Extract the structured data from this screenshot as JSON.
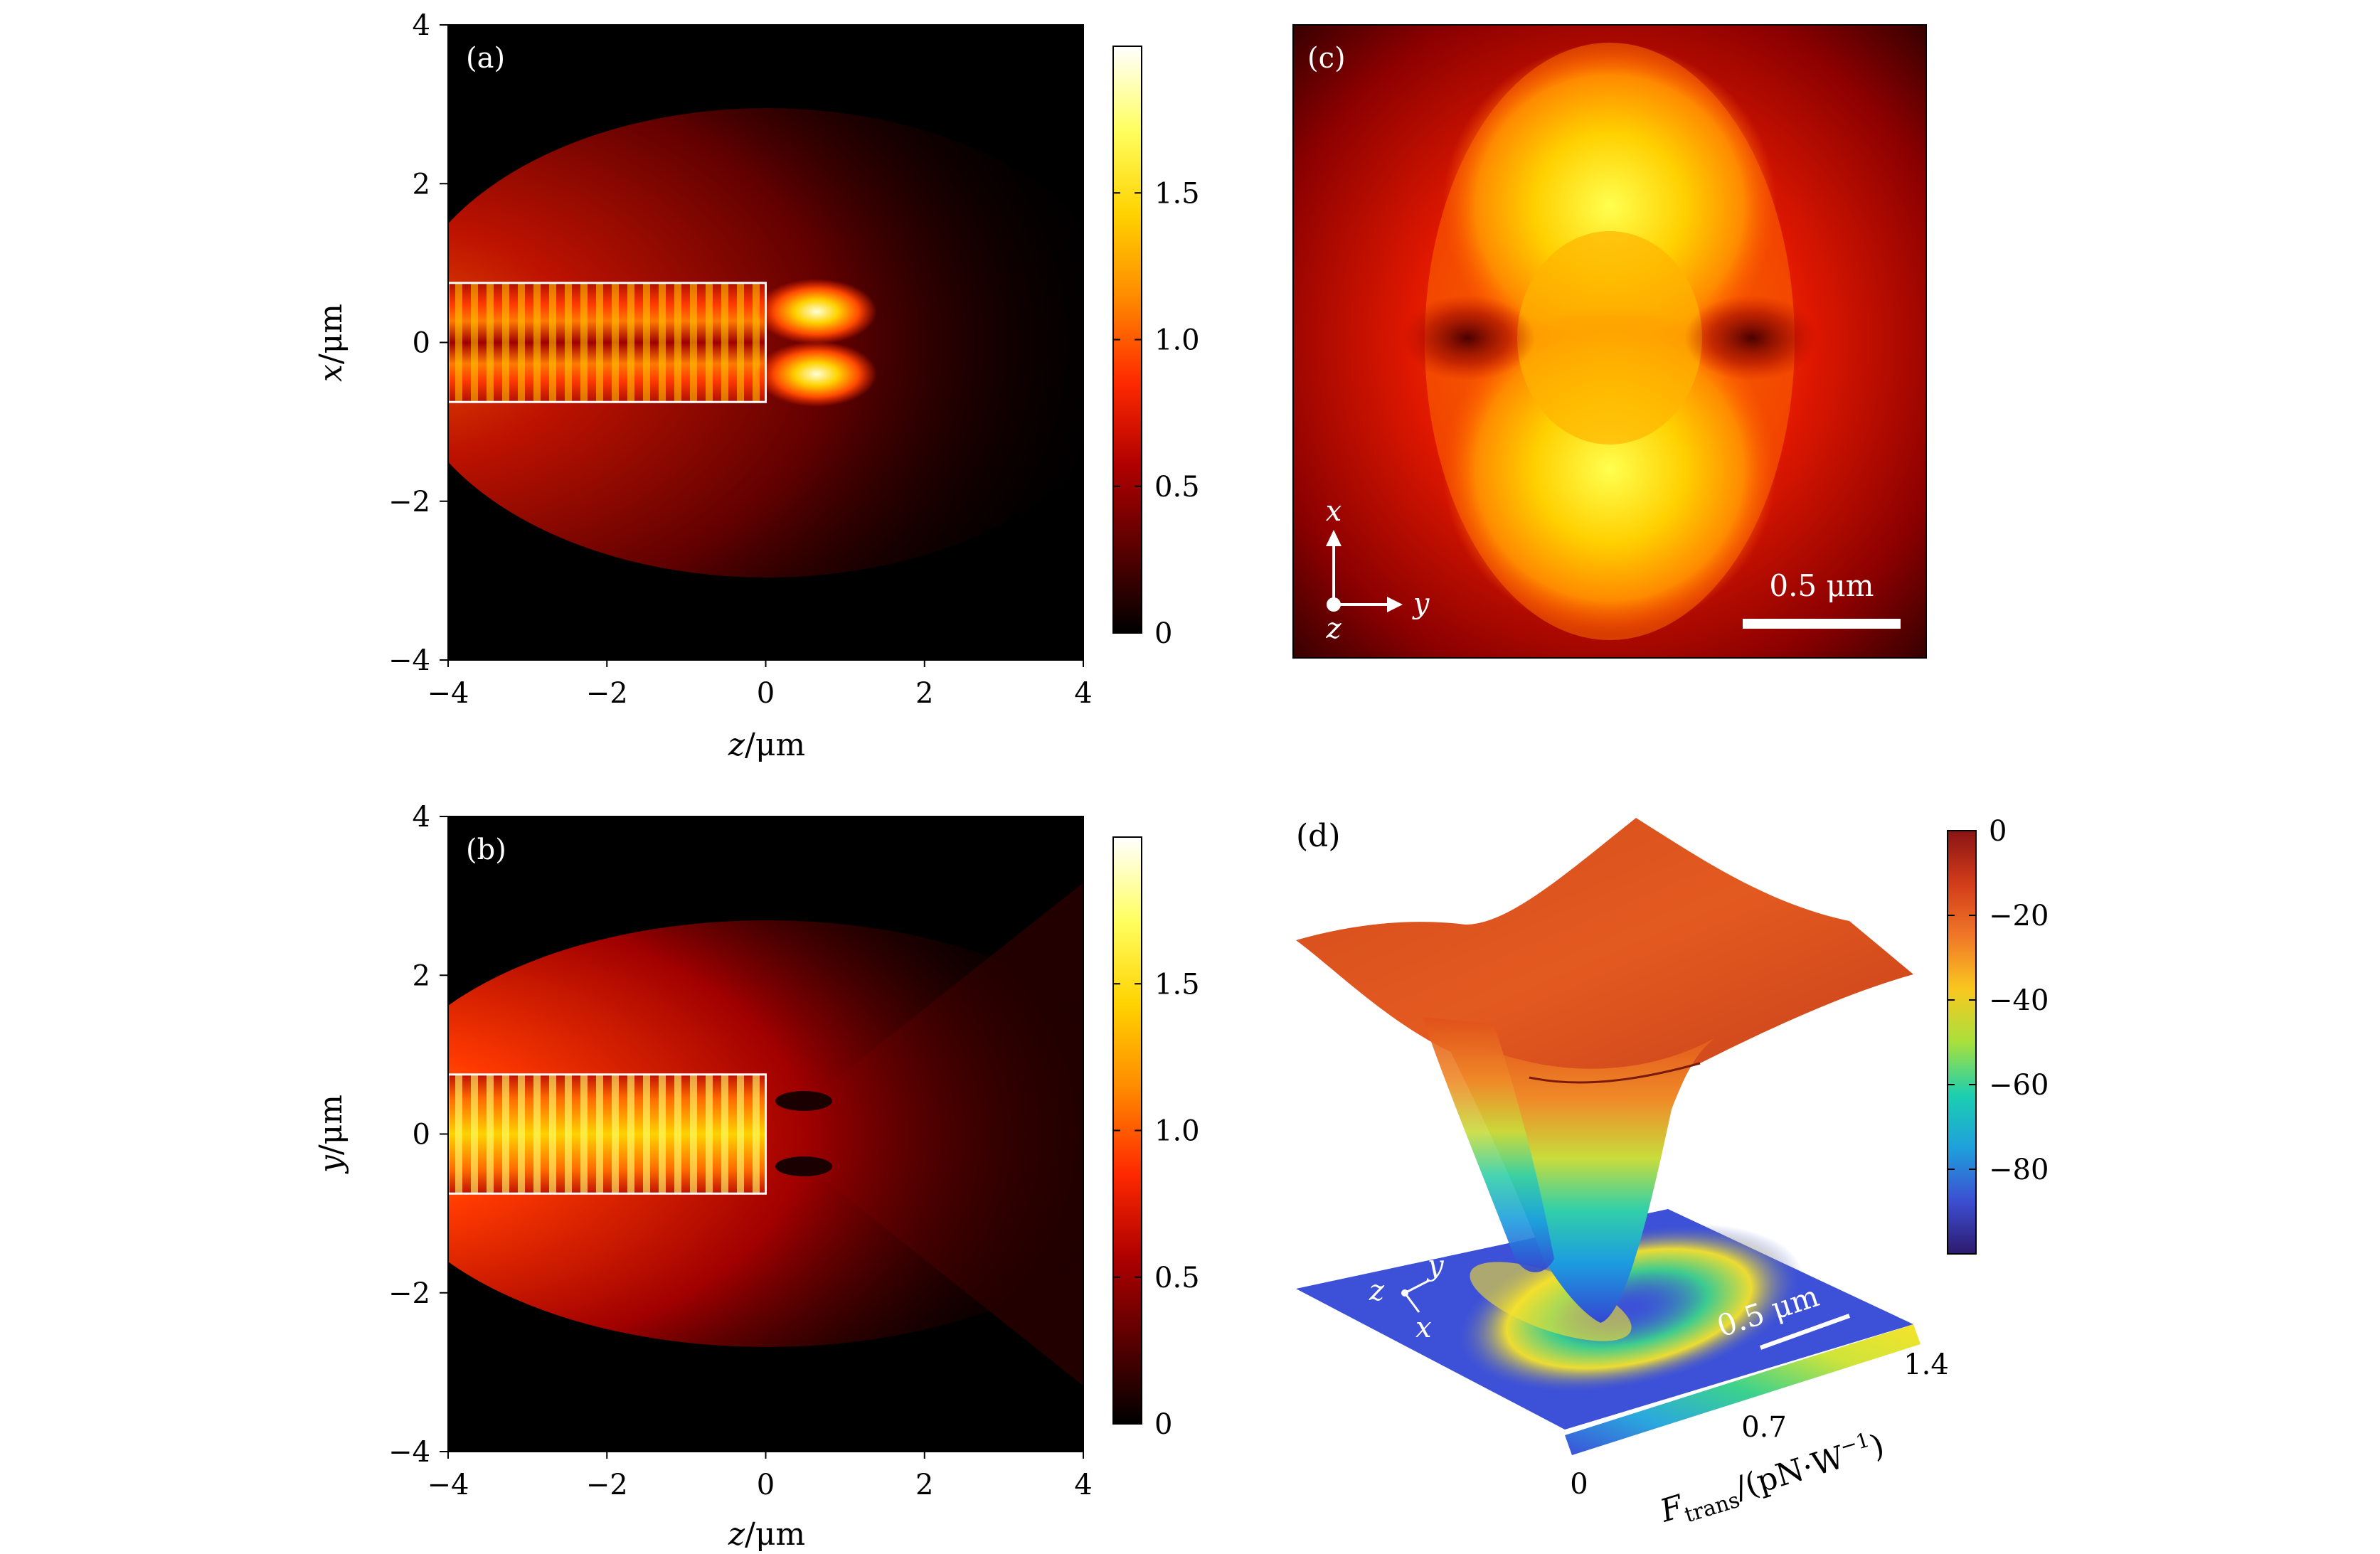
{
  "figure": {
    "colors": {
      "heatmap": [
        "#000000",
        "#5a0000",
        "#b00000",
        "#ff2a00",
        "#ff8a00",
        "#ffd200",
        "#ffff60",
        "#ffffff"
      ],
      "potential": [
        "#2e1a6e",
        "#3c4fd2",
        "#1ea0dc",
        "#1ccfb0",
        "#a8e03c",
        "#f9c820",
        "#f07828",
        "#d23c1a",
        "#8a1414"
      ],
      "force": [
        "#3c50d8",
        "#2aa8de",
        "#3cd28c",
        "#cfe43a",
        "#f6e32a"
      ],
      "annotation": "#ffffff"
    }
  },
  "chart_data": [
    {
      "type": "heatmap",
      "panel_label": "(a)",
      "xlabel_var": "z",
      "ylabel_var": "x",
      "unit": "/μm",
      "xlim": [
        -4,
        4
      ],
      "ylim": [
        -4,
        4
      ],
      "xticks": [
        -4,
        -2,
        0,
        2,
        4
      ],
      "yticks": [
        -4,
        -2,
        0,
        2,
        4
      ],
      "xtick_labels": [
        "−4",
        "−2",
        "0",
        "2",
        "4"
      ],
      "ytick_labels": [
        "−4",
        "−2",
        "0",
        "2",
        "4"
      ],
      "waveguide": {
        "z": [
          -4,
          0
        ],
        "transverse": [
          -0.75,
          0.75
        ]
      },
      "colorbar": {
        "range": [
          0,
          2
        ],
        "ticks": [
          0,
          0.5,
          1.0,
          1.5
        ],
        "tick_labels": [
          "0",
          "0.5",
          "1.0",
          "1.5"
        ]
      }
    },
    {
      "type": "heatmap",
      "panel_label": "(b)",
      "xlabel_var": "z",
      "ylabel_var": "y",
      "unit": "/μm",
      "xlim": [
        -4,
        4
      ],
      "ylim": [
        -4,
        4
      ],
      "xticks": [
        -4,
        -2,
        0,
        2,
        4
      ],
      "yticks": [
        -4,
        -2,
        0,
        2,
        4
      ],
      "xtick_labels": [
        "−4",
        "−2",
        "0",
        "2",
        "4"
      ],
      "ytick_labels": [
        "−4",
        "−2",
        "0",
        "2",
        "4"
      ],
      "waveguide": {
        "z": [
          -4,
          0
        ],
        "transverse": [
          -0.75,
          0.75
        ]
      },
      "colorbar": {
        "range": [
          0,
          2
        ],
        "ticks": [
          0,
          0.5,
          1.0,
          1.5
        ],
        "tick_labels": [
          "0",
          "0.5",
          "1.0",
          "1.5"
        ]
      }
    },
    {
      "type": "heatmap",
      "panel_label": "(c)",
      "scale_bar_label": "0.5 μm",
      "scale_bar_length_um": 0.5,
      "axes_labels": {
        "up": "x",
        "right": "y",
        "out": "z"
      }
    },
    {
      "type": "surface",
      "panel_label": "(d)",
      "scale_bar_label": "0.5 μm",
      "axes_labels": {
        "first": "z",
        "second": "y",
        "third": "x"
      },
      "potential_colorbar": {
        "range": [
          -100,
          0
        ],
        "ticks": [
          0,
          -20,
          -40,
          -60,
          -80
        ],
        "tick_labels": [
          "0",
          "−20",
          "−40",
          "−60",
          "−80"
        ]
      },
      "force_colorbar": {
        "label_main": "F",
        "label_sub": "trans",
        "label_unit": "/(pN·W",
        "label_exp": "−1",
        "label_close": ")",
        "ticks": [
          0,
          0.7,
          1.4
        ],
        "tick_labels": [
          "0",
          "0.7",
          "1.4"
        ]
      }
    }
  ]
}
